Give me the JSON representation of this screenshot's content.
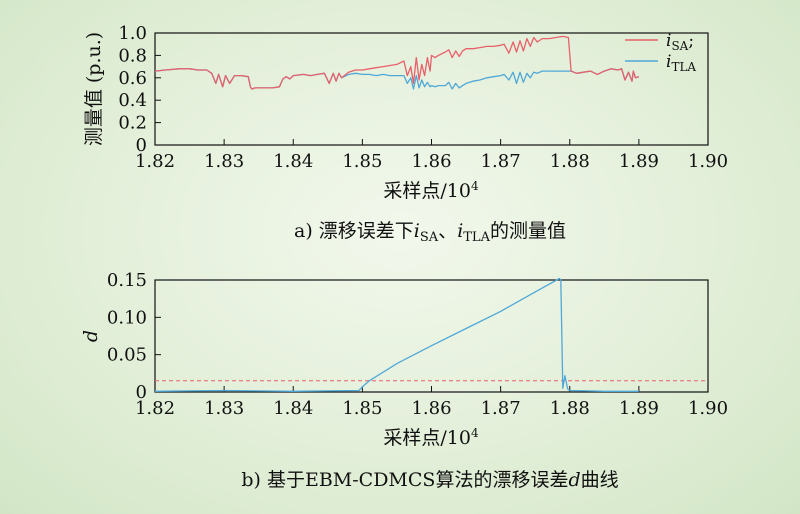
{
  "chart_data": [
    {
      "type": "line",
      "title": "",
      "caption_prefix": "a) 漂移误差下",
      "caption_i1": "i",
      "caption_sub1": "SA",
      "caption_sep": "、",
      "caption_i2": "i",
      "caption_sub2": "TLA",
      "caption_suffix": "的测量值",
      "xlabel": "采样点/10",
      "xlabel_exp": "4",
      "ylabel": "测量值 (p.u.)",
      "xlim": [
        1.82,
        1.9
      ],
      "ylim": [
        0,
        1.0
      ],
      "xticks": [
        "1.82",
        "1.83",
        "1.84",
        "1.85",
        "1.86",
        "1.87",
        "1.88",
        "1.89",
        "1.90"
      ],
      "yticks": [
        "0",
        "0.2",
        "0.4",
        "0.6",
        "0.8",
        "1.0"
      ],
      "grid": false,
      "legend_position": "top-right",
      "legend": [
        {
          "name_i": "i",
          "name_sub": "SA",
          "name_suffix": ";",
          "color": "#e8606a"
        },
        {
          "name_i": "i",
          "name_sub": "TLA",
          "name_suffix": "",
          "color": "#4fa8d8"
        }
      ],
      "series": [
        {
          "color": "#e8606a",
          "x": [
            1.82,
            1.8215,
            1.8235,
            1.825,
            1.8262,
            1.8275,
            1.8282,
            1.8288,
            1.8292,
            1.8298,
            1.8302,
            1.8308,
            1.8315,
            1.8325,
            1.8335,
            1.8338,
            1.834,
            1.8345,
            1.836,
            1.837,
            1.838,
            1.8385,
            1.839,
            1.8395,
            1.84,
            1.8415,
            1.8425,
            1.8435,
            1.8445,
            1.8452,
            1.8458,
            1.8462,
            1.8466,
            1.847,
            1.848,
            1.849,
            1.85,
            1.851,
            1.852,
            1.853,
            1.854,
            1.855,
            1.856,
            1.8565,
            1.857,
            1.8574,
            1.8578,
            1.8582,
            1.8586,
            1.859,
            1.8594,
            1.8598,
            1.86,
            1.8605,
            1.861,
            1.862,
            1.8625,
            1.863,
            1.8635,
            1.864,
            1.8645,
            1.865,
            1.866,
            1.867,
            1.868,
            1.869,
            1.87,
            1.8705,
            1.8712,
            1.8718,
            1.8723,
            1.8728,
            1.8733,
            1.8738,
            1.8743,
            1.8748,
            1.8753,
            1.876,
            1.877,
            1.878,
            1.879,
            1.8798,
            1.8802,
            1.881,
            1.882,
            1.883,
            1.884,
            1.885,
            1.886,
            1.887,
            1.8875,
            1.888,
            1.8885,
            1.889,
            1.8892,
            1.8895,
            1.89
          ],
          "values": [
            0.66,
            0.67,
            0.68,
            0.68,
            0.67,
            0.67,
            0.64,
            0.55,
            0.63,
            0.52,
            0.62,
            0.55,
            0.62,
            0.62,
            0.61,
            0.52,
            0.5,
            0.51,
            0.51,
            0.51,
            0.52,
            0.59,
            0.61,
            0.59,
            0.62,
            0.63,
            0.62,
            0.63,
            0.64,
            0.55,
            0.64,
            0.57,
            0.64,
            0.6,
            0.65,
            0.67,
            0.67,
            0.68,
            0.69,
            0.7,
            0.71,
            0.72,
            0.75,
            0.62,
            0.7,
            0.55,
            0.78,
            0.58,
            0.72,
            0.62,
            0.78,
            0.66,
            0.8,
            0.78,
            0.8,
            0.83,
            0.85,
            0.78,
            0.84,
            0.79,
            0.84,
            0.86,
            0.86,
            0.87,
            0.88,
            0.88,
            0.89,
            0.9,
            0.82,
            0.92,
            0.83,
            0.93,
            0.84,
            0.95,
            0.88,
            0.96,
            0.92,
            0.95,
            0.95,
            0.96,
            0.97,
            0.96,
            0.66,
            0.64,
            0.65,
            0.66,
            0.63,
            0.66,
            0.68,
            0.67,
            0.68,
            0.58,
            0.65,
            0.57,
            0.66,
            0.6,
            0.61
          ]
        },
        {
          "color": "#4fa8d8",
          "x": [
            1.82,
            1.8215,
            1.8235,
            1.825,
            1.8262,
            1.8275,
            1.8282,
            1.8288,
            1.8292,
            1.8298,
            1.8302,
            1.8308,
            1.8315,
            1.8325,
            1.8335,
            1.8338,
            1.834,
            1.8345,
            1.836,
            1.837,
            1.838,
            1.8385,
            1.839,
            1.8395,
            1.84,
            1.8415,
            1.8425,
            1.8435,
            1.8445,
            1.8452,
            1.8458,
            1.8462,
            1.8466,
            1.847,
            1.848,
            1.849,
            1.85,
            1.851,
            1.852,
            1.853,
            1.854,
            1.855,
            1.856,
            1.8565,
            1.857,
            1.8574,
            1.8578,
            1.8582,
            1.8586,
            1.859,
            1.8594,
            1.8598,
            1.86,
            1.8605,
            1.861,
            1.862,
            1.8625,
            1.863,
            1.8635,
            1.864,
            1.8645,
            1.865,
            1.866,
            1.867,
            1.868,
            1.869,
            1.87,
            1.8705,
            1.8712,
            1.8718,
            1.8723,
            1.8728,
            1.8733,
            1.8738,
            1.8743,
            1.8748,
            1.8753,
            1.876,
            1.877,
            1.878,
            1.879,
            1.8798,
            1.8802,
            1.881,
            1.882,
            1.883,
            1.884,
            1.885,
            1.886,
            1.887,
            1.8875,
            1.888,
            1.8885,
            1.889,
            1.8892,
            1.8895,
            1.89
          ],
          "values": [
            0.66,
            0.67,
            0.68,
            0.68,
            0.67,
            0.67,
            0.64,
            0.55,
            0.63,
            0.52,
            0.62,
            0.55,
            0.62,
            0.62,
            0.61,
            0.52,
            0.5,
            0.51,
            0.51,
            0.51,
            0.52,
            0.59,
            0.61,
            0.59,
            0.62,
            0.63,
            0.62,
            0.63,
            0.64,
            0.55,
            0.64,
            0.57,
            0.64,
            0.6,
            0.63,
            0.64,
            0.63,
            0.63,
            0.62,
            0.63,
            0.62,
            0.62,
            0.62,
            0.55,
            0.6,
            0.5,
            0.62,
            0.51,
            0.58,
            0.52,
            0.56,
            0.52,
            0.53,
            0.52,
            0.53,
            0.53,
            0.56,
            0.5,
            0.55,
            0.51,
            0.53,
            0.55,
            0.57,
            0.58,
            0.6,
            0.61,
            0.62,
            0.63,
            0.58,
            0.65,
            0.55,
            0.65,
            0.56,
            0.64,
            0.6,
            0.65,
            0.64,
            0.66,
            0.66,
            0.66,
            0.66,
            0.66,
            0.66,
            0.64,
            0.65,
            0.66,
            0.63,
            0.66,
            0.68,
            0.67,
            0.68,
            0.58,
            0.65,
            0.57,
            0.66,
            0.6,
            0.61
          ]
        }
      ]
    },
    {
      "type": "line",
      "title": "",
      "caption_prefix": "b) 基于EBM-CDMCS算法的漂移误差",
      "caption_italic": "d",
      "caption_suffix": "曲线",
      "xlabel": "采样点/10",
      "xlabel_exp": "4",
      "ylabel": "d",
      "xlim": [
        1.82,
        1.9
      ],
      "ylim": [
        0,
        0.15
      ],
      "xticks": [
        "1.82",
        "1.83",
        "1.84",
        "1.85",
        "1.86",
        "1.87",
        "1.88",
        "1.89",
        "1.90"
      ],
      "yticks": [
        "0",
        "0.05",
        "0.10",
        "0.15"
      ],
      "grid": false,
      "threshold": {
        "value": 0.015,
        "color": "#e8606a",
        "style": "dashed"
      },
      "series": [
        {
          "color": "#4fa8d8",
          "x": [
            1.82,
            1.83,
            1.84,
            1.8495,
            1.85,
            1.851,
            1.855,
            1.86,
            1.865,
            1.87,
            1.875,
            1.8785,
            1.8787,
            1.879,
            1.8793,
            1.8797,
            1.88,
            1.885,
            1.89
          ],
          "values": [
            0.001,
            0.002,
            0.001,
            0.002,
            0.007,
            0.015,
            0.038,
            0.062,
            0.085,
            0.108,
            0.134,
            0.152,
            0.15,
            0.005,
            0.022,
            0.004,
            0.002,
            0.001,
            0.001
          ]
        }
      ]
    }
  ]
}
